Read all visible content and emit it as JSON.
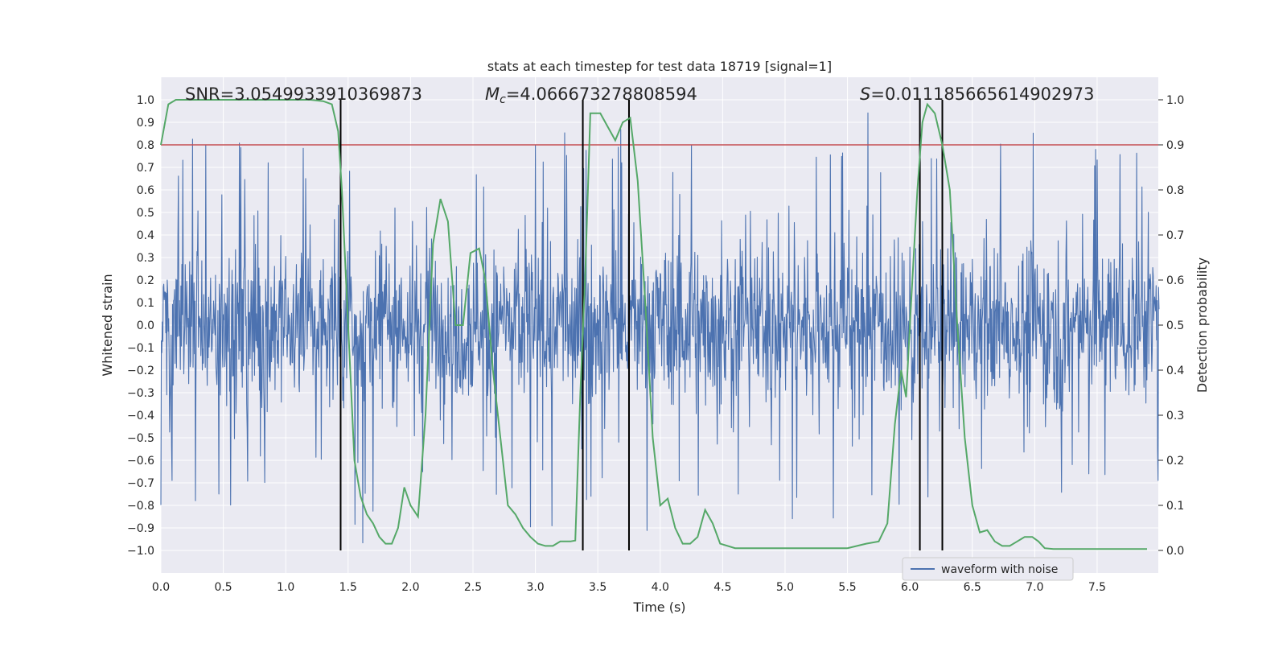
{
  "chart_data": {
    "type": "line",
    "title": "stats at each timestep for test data 18719 [signal=1]",
    "xlabel": "Time (s)",
    "ylabel": "Whitened strain",
    "y2label": "Detection probability",
    "xlim": [
      0.0,
      7.99
    ],
    "ylim": [
      -1.1,
      1.1
    ],
    "y2lim": [
      -0.05,
      1.05
    ],
    "x_ticks": [
      0.0,
      0.5,
      1.0,
      1.5,
      2.0,
      2.5,
      3.0,
      3.5,
      4.0,
      4.5,
      5.0,
      5.5,
      6.0,
      6.5,
      7.0,
      7.5
    ],
    "x_tick_labels": [
      "0.0",
      "0.5",
      "1.0",
      "1.5",
      "2.0",
      "2.5",
      "3.0",
      "3.5",
      "4.0",
      "4.5",
      "5.0",
      "5.5",
      "6.0",
      "6.5",
      "7.0",
      "7.5"
    ],
    "y_ticks": [
      1.0,
      0.9,
      0.8,
      0.7,
      0.6,
      0.5,
      0.4,
      0.3,
      0.2,
      0.1,
      0.0,
      -0.1,
      -0.2,
      -0.3,
      -0.4,
      -0.5,
      -0.6,
      -0.7,
      -0.8,
      -0.9,
      -1.0
    ],
    "y_tick_labels": [
      "1.0",
      "0.9",
      "0.8",
      "0.7",
      "0.6",
      "0.5",
      "0.4",
      "0.3",
      "0.2",
      "0.1",
      "0.0",
      "−0.1",
      "−0.2",
      "−0.3",
      "−0.4",
      "−0.5",
      "−0.6",
      "−0.7",
      "−0.8",
      "−0.9",
      "−1.0"
    ],
    "y2_ticks": [
      1.0,
      0.9,
      0.8,
      0.7,
      0.6,
      0.5,
      0.4,
      0.3,
      0.2,
      0.1,
      0.0
    ],
    "y2_tick_labels": [
      "1.0",
      "0.9",
      "0.8",
      "0.7",
      "0.6",
      "0.5",
      "0.4",
      "0.3",
      "0.2",
      "0.1",
      "0.0"
    ],
    "grid": true,
    "legend": {
      "entries": [
        "waveform with noise"
      ],
      "placement": "lower-right"
    },
    "annotations": {
      "snr": "SNR=3.0549933910369873",
      "mc_symbol": "M",
      "mc_sub": "c",
      "mc_value": "=4.066673278808594",
      "s_symbol": "S",
      "s_value": "=0.011185665614902973"
    },
    "threshold": {
      "axis": "y2",
      "value": 0.9,
      "color": "#c44e52"
    },
    "event_lines_x": [
      1.44,
      3.38,
      3.75,
      6.08,
      6.26
    ],
    "waveform": {
      "name": "waveform with noise",
      "color": "#4c72b0",
      "fs_hz": 256,
      "duration_s": 8.0,
      "typical_range": [
        -0.45,
        0.45
      ],
      "peak_range": [
        -0.97,
        0.99
      ]
    },
    "probability": {
      "name": "detection probability",
      "color": "#55a868",
      "x": [
        0.0,
        0.06,
        0.12,
        0.5,
        1.0,
        1.2,
        1.3,
        1.37,
        1.42,
        1.45,
        1.5,
        1.55,
        1.6,
        1.65,
        1.7,
        1.75,
        1.8,
        1.85,
        1.9,
        1.95,
        2.0,
        2.06,
        2.12,
        2.18,
        2.24,
        2.3,
        2.36,
        2.42,
        2.48,
        2.55,
        2.6,
        2.66,
        2.72,
        2.78,
        2.84,
        2.9,
        2.96,
        3.02,
        3.08,
        3.14,
        3.2,
        3.28,
        3.32,
        3.36,
        3.4,
        3.44,
        3.48,
        3.52,
        3.58,
        3.64,
        3.7,
        3.76,
        3.82,
        3.88,
        3.94,
        4.0,
        4.06,
        4.12,
        4.18,
        4.24,
        4.3,
        4.36,
        4.42,
        4.48,
        4.6,
        4.8,
        5.0,
        5.3,
        5.5,
        5.65,
        5.75,
        5.82,
        5.88,
        5.93,
        5.97,
        6.01,
        6.06,
        6.1,
        6.14,
        6.2,
        6.26,
        6.32,
        6.38,
        6.44,
        6.5,
        6.56,
        6.62,
        6.68,
        6.74,
        6.8,
        6.86,
        6.92,
        6.98,
        7.03,
        7.08,
        7.15,
        7.5,
        7.9
      ],
      "y": [
        0.9,
        0.99,
        1.0,
        1.0,
        1.0,
        1.0,
        0.997,
        0.99,
        0.93,
        0.8,
        0.5,
        0.2,
        0.12,
        0.08,
        0.06,
        0.03,
        0.015,
        0.015,
        0.05,
        0.14,
        0.1,
        0.075,
        0.3,
        0.68,
        0.78,
        0.73,
        0.5,
        0.5,
        0.66,
        0.67,
        0.6,
        0.4,
        0.25,
        0.1,
        0.08,
        0.05,
        0.03,
        0.015,
        0.01,
        0.01,
        0.02,
        0.02,
        0.022,
        0.35,
        0.62,
        0.97,
        0.97,
        0.97,
        0.94,
        0.91,
        0.95,
        0.96,
        0.82,
        0.55,
        0.25,
        0.1,
        0.115,
        0.05,
        0.015,
        0.015,
        0.03,
        0.09,
        0.06,
        0.015,
        0.005,
        0.005,
        0.005,
        0.005,
        0.005,
        0.015,
        0.02,
        0.06,
        0.28,
        0.4,
        0.34,
        0.55,
        0.8,
        0.95,
        0.99,
        0.97,
        0.9,
        0.8,
        0.5,
        0.25,
        0.1,
        0.04,
        0.045,
        0.02,
        0.01,
        0.01,
        0.02,
        0.03,
        0.03,
        0.02,
        0.005,
        0.003,
        0.003,
        0.003
      ]
    }
  }
}
